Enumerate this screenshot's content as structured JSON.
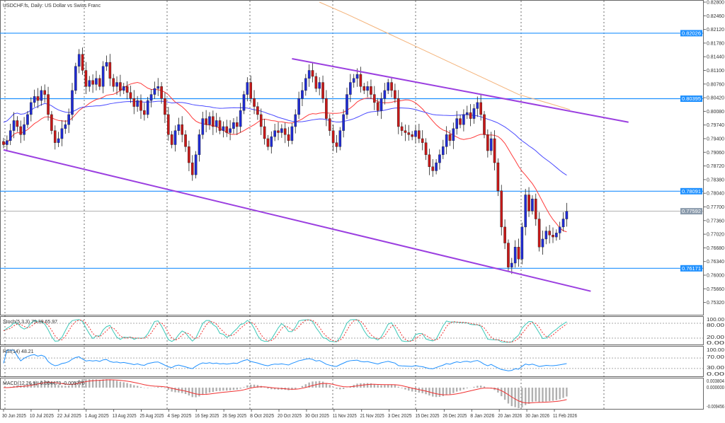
{
  "title": "USDCHF.fs, Daily:  US Dollar vs Swiss Franc",
  "chart_data": {
    "type": "candlestick",
    "symbol": "USDCHF.fs",
    "timeframe": "Daily",
    "x_tick_labels": [
      "30 Jun 2025",
      "10 Jul 2025",
      "22 Jul 2025",
      "1 Aug 2025",
      "13 Aug 2025",
      "25 Aug 2025",
      "4 Sep 2025",
      "16 Sep 2025",
      "26 Sep 2025",
      "8 Oct 2025",
      "20 Oct 2025",
      "30 Oct 2025",
      "11 Nov 2025",
      "21 Nov 2025",
      "3 Dec 2025",
      "15 Dec 2025",
      "26 Dec 2025",
      "8 Jan 2026",
      "20 Jan 2026",
      "30 Jan 2026",
      "11 Feb 2026"
    ],
    "y_tick_labels": [
      "0.82800",
      "0.82460",
      "0.82120",
      "0.81780",
      "0.81440",
      "0.81100",
      "0.80760",
      "0.80420",
      "0.80080",
      "0.79740",
      "0.79400",
      "0.79060",
      "0.78720",
      "0.78380",
      "0.78040",
      "0.77700",
      "0.77360",
      "0.77020",
      "0.76680",
      "0.76340",
      "0.76000",
      "0.75660",
      "0.75320"
    ],
    "ylim": [
      0.7515,
      0.8285
    ],
    "closes": [
      0.7925,
      0.7935,
      0.796,
      0.7985,
      0.797,
      0.795,
      0.7975,
      0.8,
      0.803,
      0.8045,
      0.8035,
      0.806,
      0.805,
      0.8,
      0.796,
      0.793,
      0.794,
      0.7965,
      0.7975,
      0.8,
      0.806,
      0.812,
      0.815,
      0.811,
      0.807,
      0.8085,
      0.8075,
      0.809,
      0.807,
      0.812,
      0.813,
      0.809,
      0.807,
      0.808,
      0.806,
      0.807,
      0.8055,
      0.804,
      0.802,
      0.8035,
      0.801,
      0.8,
      0.8035,
      0.805,
      0.8065,
      0.807,
      0.804,
      0.8,
      0.795,
      0.7925,
      0.796,
      0.7975,
      0.795,
      0.792,
      0.788,
      0.785,
      0.79,
      0.795,
      0.799,
      0.7975,
      0.7995,
      0.797,
      0.7985,
      0.796,
      0.797,
      0.7955,
      0.7965,
      0.798,
      0.797,
      0.801,
      0.805,
      0.808,
      0.804,
      0.802,
      0.8,
      0.797,
      0.794,
      0.792,
      0.7945,
      0.796,
      0.7955,
      0.7965,
      0.795,
      0.7935,
      0.797,
      0.8,
      0.804,
      0.806,
      0.809,
      0.811,
      0.8095,
      0.8065,
      0.808,
      0.804,
      0.799,
      0.796,
      0.793,
      0.792,
      0.796,
      0.8,
      0.805,
      0.808,
      0.809,
      0.81,
      0.807,
      0.806,
      0.807,
      0.805,
      0.803,
      0.801,
      0.804,
      0.806,
      0.808,
      0.806,
      0.804,
      0.797,
      0.796,
      0.7955,
      0.795,
      0.7945,
      0.796,
      0.794,
      0.793,
      0.79,
      0.787,
      0.786,
      0.788,
      0.79,
      0.792,
      0.795,
      0.7935,
      0.7965,
      0.799,
      0.7975,
      0.8,
      0.8005,
      0.799,
      0.8015,
      0.803,
      0.8,
      0.795,
      0.791,
      0.794,
      0.788,
      0.781,
      0.772,
      0.768,
      0.762,
      0.763,
      0.767,
      0.764,
      0.772,
      0.78,
      0.776,
      0.779,
      0.774,
      0.767,
      0.769,
      0.771,
      0.77,
      0.7695,
      0.7705,
      0.772,
      0.774,
      0.7759
    ],
    "moving_averages": [
      {
        "color": "#ff3b3b"
      },
      {
        "color": "#4a4aff"
      },
      {
        "color": "#f4b37a",
        "points": [
          [
            92,
            0.828
          ],
          [
            100,
            0.825
          ],
          [
            110,
            0.821
          ],
          [
            120,
            0.817
          ],
          [
            130,
            0.813
          ],
          [
            140,
            0.809
          ],
          [
            150,
            0.805
          ],
          [
            160,
            0.8025
          ],
          [
            165,
            0.8012
          ]
        ]
      }
    ],
    "horizontal_levels": [
      {
        "price": 0.82026,
        "label": "0.82026"
      },
      {
        "price": 0.80395,
        "label": "0.80395"
      },
      {
        "price": 0.78091,
        "label": "0.78091"
      },
      {
        "price": 0.76171,
        "label": "0.76171"
      }
    ],
    "current_price": {
      "price": 0.77592,
      "label": "0.77592"
    },
    "trendlines": [
      {
        "from": [
          84,
          0.8139
        ],
        "to": [
          182,
          0.7981
        ]
      },
      {
        "from": [
          0,
          0.7912
        ],
        "to": [
          171,
          0.756
        ]
      }
    ],
    "colors": {
      "bull": "#1f2bd6",
      "bear": "#c81818",
      "level": "#1e90ff",
      "trendline": "#9b3fe0"
    },
    "indicators": {
      "stoch": {
        "label": "Stoch(5,3,3) 79.39 65.97",
        "ticks": [
          "100.00",
          "80.00",
          "20.00",
          "0.00"
        ]
      },
      "rsi": {
        "label": "RSI(14) 48.21",
        "ticks": [
          "100.00",
          "70.00",
          "30.00",
          "0.00"
        ]
      },
      "macd": {
        "label": "MACD(12,26,9) -0.004473 -0.005770",
        "ticks": [
          "0.003804",
          "0.000000",
          "-0.009456"
        ]
      }
    }
  }
}
